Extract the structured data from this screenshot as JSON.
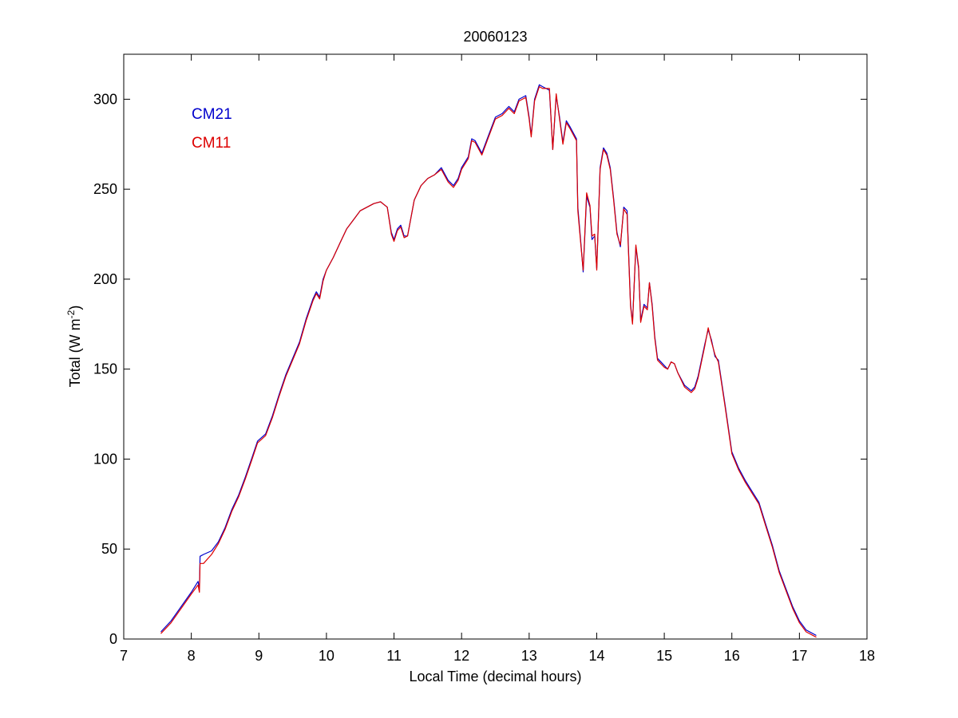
{
  "chart_data": {
    "type": "line",
    "title": "20060123",
    "xlabel": "Local Time (decimal hours)",
    "ylabel_main": "Total (W m",
    "ylabel_sup": "-2",
    "ylabel_close": ")",
    "xlim": [
      7,
      18
    ],
    "ylim": [
      0,
      325
    ],
    "xticks": [
      7,
      8,
      9,
      10,
      11,
      12,
      13,
      14,
      15,
      16,
      17,
      18
    ],
    "yticks": [
      0,
      50,
      100,
      150,
      200,
      250,
      300
    ],
    "grid": false,
    "legend_position": "top-left",
    "series": [
      {
        "name": "CM21",
        "color": "#0000cc",
        "points": [
          [
            7.55,
            4
          ],
          [
            7.7,
            10
          ],
          [
            7.85,
            18
          ],
          [
            8.0,
            26
          ],
          [
            8.1,
            32
          ],
          [
            8.12,
            28
          ],
          [
            8.13,
            46
          ],
          [
            8.18,
            47
          ],
          [
            8.3,
            49
          ],
          [
            8.4,
            54
          ],
          [
            8.5,
            62
          ],
          [
            8.6,
            72
          ],
          [
            8.7,
            80
          ],
          [
            8.8,
            90
          ],
          [
            8.9,
            101
          ],
          [
            8.98,
            110
          ],
          [
            9.1,
            114
          ],
          [
            9.2,
            124
          ],
          [
            9.3,
            136
          ],
          [
            9.4,
            147
          ],
          [
            9.5,
            156
          ],
          [
            9.6,
            165
          ],
          [
            9.7,
            178
          ],
          [
            9.8,
            189
          ],
          [
            9.85,
            193
          ],
          [
            9.9,
            190
          ],
          [
            9.95,
            200
          ],
          [
            10.0,
            205
          ],
          [
            10.1,
            212
          ],
          [
            10.2,
            220
          ],
          [
            10.3,
            228
          ],
          [
            10.4,
            233
          ],
          [
            10.5,
            238
          ],
          [
            10.6,
            240
          ],
          [
            10.7,
            242
          ],
          [
            10.8,
            243
          ],
          [
            10.9,
            240
          ],
          [
            10.96,
            226
          ],
          [
            11.0,
            222
          ],
          [
            11.05,
            228
          ],
          [
            11.1,
            230
          ],
          [
            11.15,
            224
          ],
          [
            11.2,
            224
          ],
          [
            11.3,
            244
          ],
          [
            11.4,
            252
          ],
          [
            11.5,
            256
          ],
          [
            11.6,
            258
          ],
          [
            11.7,
            262
          ],
          [
            11.8,
            255
          ],
          [
            11.88,
            252
          ],
          [
            11.95,
            256
          ],
          [
            12.0,
            262
          ],
          [
            12.1,
            268
          ],
          [
            12.15,
            278
          ],
          [
            12.2,
            277
          ],
          [
            12.3,
            270
          ],
          [
            12.4,
            280
          ],
          [
            12.5,
            290
          ],
          [
            12.6,
            292
          ],
          [
            12.7,
            296
          ],
          [
            12.78,
            293
          ],
          [
            12.85,
            300
          ],
          [
            12.95,
            302
          ],
          [
            13.0,
            290
          ],
          [
            13.03,
            280
          ],
          [
            13.08,
            300
          ],
          [
            13.15,
            308
          ],
          [
            13.2,
            307
          ],
          [
            13.3,
            305
          ],
          [
            13.35,
            272
          ],
          [
            13.4,
            302
          ],
          [
            13.45,
            290
          ],
          [
            13.5,
            276
          ],
          [
            13.55,
            288
          ],
          [
            13.6,
            285
          ],
          [
            13.7,
            278
          ],
          [
            13.72,
            240
          ],
          [
            13.77,
            218
          ],
          [
            13.8,
            204
          ],
          [
            13.85,
            246
          ],
          [
            13.9,
            240
          ],
          [
            13.93,
            222
          ],
          [
            13.97,
            224
          ],
          [
            14.0,
            206
          ],
          [
            14.05,
            262
          ],
          [
            14.1,
            273
          ],
          [
            14.15,
            270
          ],
          [
            14.2,
            262
          ],
          [
            14.25,
            245
          ],
          [
            14.3,
            226
          ],
          [
            14.35,
            218
          ],
          [
            14.4,
            240
          ],
          [
            14.45,
            238
          ],
          [
            14.5,
            186
          ],
          [
            14.53,
            176
          ],
          [
            14.58,
            218
          ],
          [
            14.62,
            206
          ],
          [
            14.65,
            177
          ],
          [
            14.7,
            186
          ],
          [
            14.75,
            184
          ],
          [
            14.78,
            198
          ],
          [
            14.82,
            186
          ],
          [
            14.86,
            168
          ],
          [
            14.9,
            156
          ],
          [
            14.95,
            154
          ],
          [
            15.0,
            152
          ],
          [
            15.05,
            150
          ],
          [
            15.1,
            154
          ],
          [
            15.15,
            153
          ],
          [
            15.2,
            148
          ],
          [
            15.3,
            141
          ],
          [
            15.4,
            138
          ],
          [
            15.45,
            140
          ],
          [
            15.5,
            146
          ],
          [
            15.6,
            164
          ],
          [
            15.65,
            172
          ],
          [
            15.7,
            166
          ],
          [
            15.75,
            157
          ],
          [
            15.8,
            155
          ],
          [
            15.9,
            130
          ],
          [
            16.0,
            104
          ],
          [
            16.1,
            95
          ],
          [
            16.2,
            88
          ],
          [
            16.3,
            82
          ],
          [
            16.4,
            76
          ],
          [
            16.5,
            64
          ],
          [
            16.6,
            52
          ],
          [
            16.7,
            38
          ],
          [
            16.8,
            28
          ],
          [
            16.9,
            18
          ],
          [
            17.0,
            10
          ],
          [
            17.1,
            5
          ],
          [
            17.25,
            2
          ]
        ]
      },
      {
        "name": "CM11",
        "color": "#dd0000",
        "points": [
          [
            7.55,
            3
          ],
          [
            7.7,
            9
          ],
          [
            7.85,
            17
          ],
          [
            8.0,
            25
          ],
          [
            8.1,
            30
          ],
          [
            8.12,
            26
          ],
          [
            8.13,
            42
          ],
          [
            8.18,
            42
          ],
          [
            8.3,
            47
          ],
          [
            8.4,
            53
          ],
          [
            8.5,
            61
          ],
          [
            8.6,
            71
          ],
          [
            8.7,
            79
          ],
          [
            8.8,
            89
          ],
          [
            8.9,
            100
          ],
          [
            8.98,
            109
          ],
          [
            9.1,
            113
          ],
          [
            9.2,
            123
          ],
          [
            9.3,
            135
          ],
          [
            9.4,
            146
          ],
          [
            9.5,
            155
          ],
          [
            9.6,
            164
          ],
          [
            9.7,
            177
          ],
          [
            9.8,
            188
          ],
          [
            9.85,
            192
          ],
          [
            9.9,
            189
          ],
          [
            9.95,
            199
          ],
          [
            10.0,
            205
          ],
          [
            10.1,
            212
          ],
          [
            10.2,
            220
          ],
          [
            10.3,
            228
          ],
          [
            10.4,
            233
          ],
          [
            10.5,
            238
          ],
          [
            10.6,
            240
          ],
          [
            10.7,
            242
          ],
          [
            10.8,
            243
          ],
          [
            10.9,
            240
          ],
          [
            10.96,
            225
          ],
          [
            11.0,
            221
          ],
          [
            11.05,
            227
          ],
          [
            11.1,
            229
          ],
          [
            11.15,
            223
          ],
          [
            11.2,
            224
          ],
          [
            11.3,
            244
          ],
          [
            11.4,
            252
          ],
          [
            11.5,
            256
          ],
          [
            11.6,
            258
          ],
          [
            11.7,
            261
          ],
          [
            11.8,
            254
          ],
          [
            11.88,
            251
          ],
          [
            11.95,
            255
          ],
          [
            12.0,
            261
          ],
          [
            12.1,
            267
          ],
          [
            12.15,
            277
          ],
          [
            12.2,
            276
          ],
          [
            12.3,
            269
          ],
          [
            12.4,
            279
          ],
          [
            12.5,
            289
          ],
          [
            12.6,
            291
          ],
          [
            12.7,
            295
          ],
          [
            12.78,
            292
          ],
          [
            12.85,
            299
          ],
          [
            12.95,
            301
          ],
          [
            13.0,
            289
          ],
          [
            13.03,
            279
          ],
          [
            13.08,
            299
          ],
          [
            13.15,
            307
          ],
          [
            13.2,
            306
          ],
          [
            13.3,
            306
          ],
          [
            13.35,
            272
          ],
          [
            13.4,
            303
          ],
          [
            13.45,
            289
          ],
          [
            13.5,
            275
          ],
          [
            13.55,
            287
          ],
          [
            13.6,
            284
          ],
          [
            13.7,
            277
          ],
          [
            13.72,
            238
          ],
          [
            13.77,
            217
          ],
          [
            13.8,
            205
          ],
          [
            13.85,
            248
          ],
          [
            13.9,
            241
          ],
          [
            13.93,
            224
          ],
          [
            13.97,
            225
          ],
          [
            14.0,
            205
          ],
          [
            14.05,
            261
          ],
          [
            14.1,
            272
          ],
          [
            14.15,
            269
          ],
          [
            14.2,
            261
          ],
          [
            14.25,
            244
          ],
          [
            14.3,
            225
          ],
          [
            14.35,
            219
          ],
          [
            14.4,
            239
          ],
          [
            14.45,
            236
          ],
          [
            14.5,
            185
          ],
          [
            14.53,
            175
          ],
          [
            14.58,
            219
          ],
          [
            14.62,
            207
          ],
          [
            14.65,
            176
          ],
          [
            14.7,
            185
          ],
          [
            14.75,
            183
          ],
          [
            14.78,
            198
          ],
          [
            14.82,
            185
          ],
          [
            14.86,
            167
          ],
          [
            14.9,
            155
          ],
          [
            14.95,
            153
          ],
          [
            15.0,
            151
          ],
          [
            15.05,
            150
          ],
          [
            15.1,
            154
          ],
          [
            15.15,
            153
          ],
          [
            15.2,
            148
          ],
          [
            15.3,
            140
          ],
          [
            15.4,
            137
          ],
          [
            15.45,
            139
          ],
          [
            15.5,
            145
          ],
          [
            15.6,
            163
          ],
          [
            15.65,
            173
          ],
          [
            15.7,
            165
          ],
          [
            15.75,
            158
          ],
          [
            15.8,
            154
          ],
          [
            15.9,
            129
          ],
          [
            16.0,
            103
          ],
          [
            16.1,
            94
          ],
          [
            16.2,
            87
          ],
          [
            16.3,
            81
          ],
          [
            16.4,
            75
          ],
          [
            16.5,
            63
          ],
          [
            16.6,
            51
          ],
          [
            16.7,
            37
          ],
          [
            16.8,
            27
          ],
          [
            16.9,
            17
          ],
          [
            17.0,
            9
          ],
          [
            17.1,
            4
          ],
          [
            17.25,
            1
          ]
        ]
      }
    ]
  }
}
